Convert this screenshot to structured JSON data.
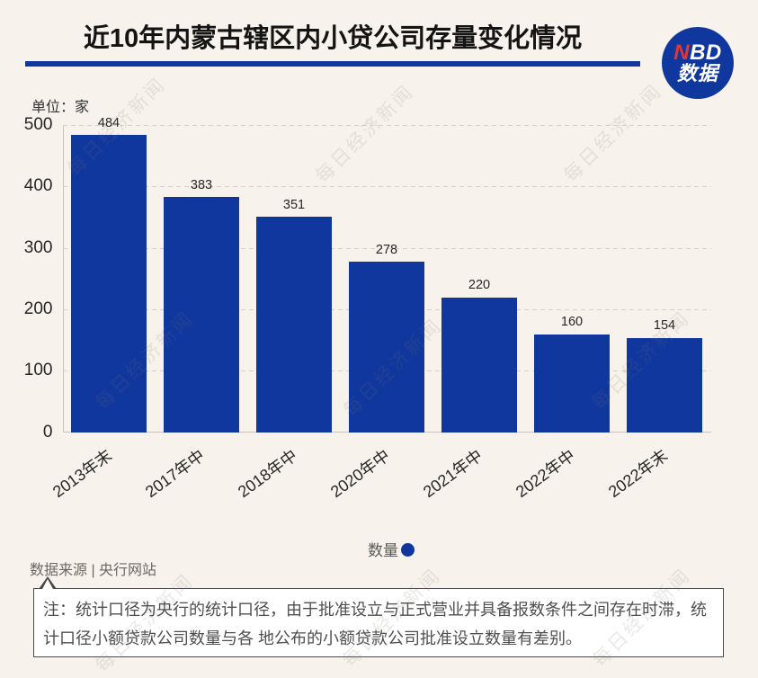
{
  "page": {
    "background": "#f7f3ec"
  },
  "header": {
    "title": "近10年内蒙古辖区内小贷公司存量变化情况",
    "accent_color": "#10379e"
  },
  "logo": {
    "line1_red": "N",
    "line1_rest": "BD",
    "line2": "数据",
    "circle_color": "#10379e",
    "n_color": "#e23636"
  },
  "chart_data": {
    "type": "bar",
    "title": "近10年内蒙古辖区内小贷公司存量变化情况",
    "unit_label": "单位：家",
    "categories": [
      "2013年末",
      "2017年中",
      "2018年中",
      "2020年中",
      "2021年中",
      "2022年中",
      "2022年末"
    ],
    "series": [
      {
        "name": "数量",
        "values": [
          484,
          383,
          351,
          278,
          220,
          160,
          154
        ]
      }
    ],
    "ylim": [
      0,
      500
    ],
    "yticks": [
      0,
      100,
      200,
      300,
      400,
      500
    ],
    "bar_color": "#10379e",
    "grid": true,
    "legend_position": "bottom"
  },
  "legend": {
    "label": "数量",
    "marker_color": "#10379e"
  },
  "source": {
    "text": "数据来源 | 央行网站"
  },
  "note": {
    "text": "注：统计口径为央行的统计口径，由于批准设立与正式营业并具备报数条件之间存在时滞，统计口径小额贷款公司数量与各 地公布的小额贷款公司批准设立数量有差别。"
  },
  "watermark": {
    "text": "每日经济新闻"
  }
}
